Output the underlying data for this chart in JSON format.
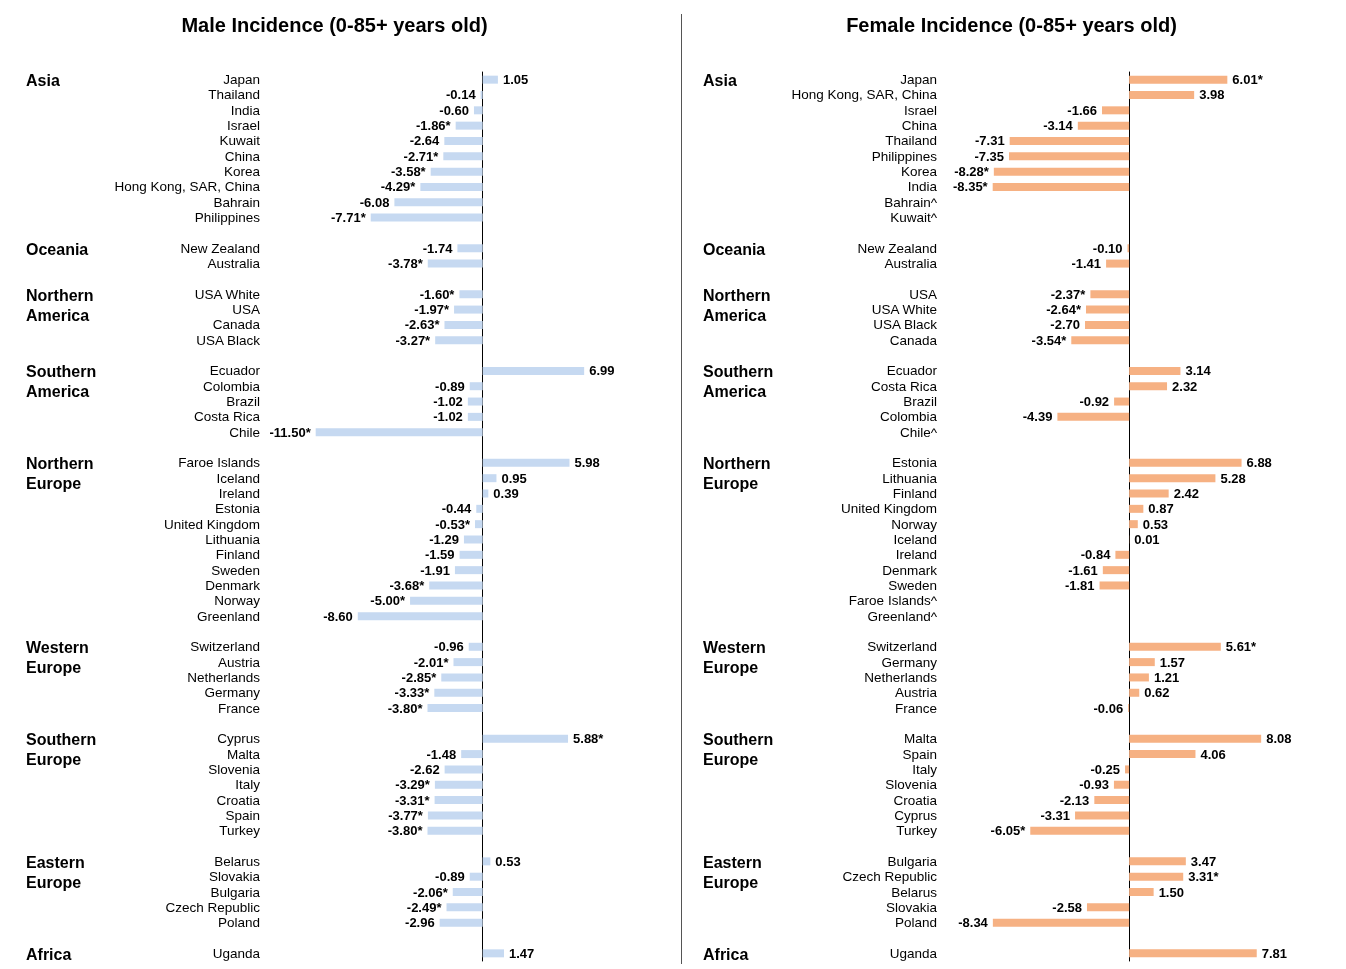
{
  "chart_data": [
    {
      "type": "bar",
      "orientation": "horizontal",
      "title": "Male Incidence (0-85+ years old)",
      "color": "#c6d9f1",
      "grid": false,
      "categories": [
        "Japan",
        "Thailand",
        "India",
        "Israel",
        "Kuwait",
        "China",
        "Korea",
        "Hong Kong, SAR, China",
        "Bahrain",
        "Philippines",
        null,
        "New Zealand",
        "Australia",
        null,
        "USA White",
        "USA",
        "Canada",
        "USA Black",
        null,
        "Ecuador",
        "Colombia",
        "Brazil",
        "Costa Rica",
        "Chile",
        null,
        "Faroe Islands",
        "Iceland",
        "Ireland",
        "Estonia",
        "United Kingdom",
        "Lithuania",
        "Finland",
        "Sweden",
        "Denmark",
        "Norway",
        "Greenland",
        null,
        "Switzerland",
        "Austria",
        "Netherlands",
        "Germany",
        "France",
        null,
        "Cyprus",
        "Malta",
        "Slovenia",
        "Italy",
        "Croatia",
        "Spain",
        "Turkey",
        null,
        "Belarus",
        "Slovakia",
        "Bulgaria",
        "Czech Republic",
        "Poland",
        null,
        "Uganda"
      ],
      "values": [
        1.05,
        -0.14,
        -0.6,
        -1.86,
        -2.64,
        -2.71,
        -3.58,
        -4.29,
        -6.08,
        -7.71,
        null,
        -1.74,
        -3.78,
        null,
        -1.6,
        -1.97,
        -2.63,
        -3.27,
        null,
        6.99,
        -0.89,
        -1.02,
        -1.02,
        -11.5,
        null,
        5.98,
        0.95,
        0.39,
        -0.44,
        -0.53,
        -1.29,
        -1.59,
        -1.91,
        -3.68,
        -5.0,
        -8.6,
        null,
        -0.96,
        -2.01,
        -2.85,
        -3.33,
        -3.8,
        null,
        5.88,
        -1.48,
        -2.62,
        -3.29,
        -3.31,
        -3.77,
        -3.8,
        null,
        0.53,
        -0.89,
        -2.06,
        -2.49,
        -2.96,
        null,
        1.47
      ],
      "value_labels": [
        "1.05",
        "-0.14",
        "-0.60",
        "-1.86*",
        "-2.64",
        "-2.71*",
        "-3.58*",
        "-4.29*",
        "-6.08",
        "-7.71*",
        null,
        "-1.74",
        "-3.78*",
        null,
        "-1.60*",
        "-1.97*",
        "-2.63*",
        "-3.27*",
        null,
        "6.99",
        "-0.89",
        "-1.02",
        "-1.02",
        "-11.50*",
        null,
        "5.98",
        "0.95",
        "0.39",
        "-0.44",
        "-0.53*",
        "-1.29",
        "-1.59",
        "-1.91",
        "-3.68*",
        "-5.00*",
        "-8.60",
        null,
        "-0.96",
        "-2.01*",
        "-2.85*",
        "-3.33*",
        "-3.80*",
        null,
        "5.88*",
        "-1.48",
        "-2.62",
        "-3.29*",
        "-3.31*",
        "-3.77*",
        "-3.80*",
        null,
        "0.53",
        "-0.89",
        "-2.06*",
        "-2.49*",
        "-2.96",
        null,
        "1.47"
      ],
      "annotations": [
        "Asia",
        "Oceania",
        "Northern America",
        "Southern America",
        "Northern Europe",
        "Western Europe",
        "Southern Europe",
        "Eastern Europe",
        "Africa"
      ]
    },
    {
      "type": "bar",
      "orientation": "horizontal",
      "title": "Female Incidence (0-85+ years old)",
      "color": "#f6b183",
      "grid": false,
      "categories": [
        "Japan",
        "Hong Kong, SAR, China",
        "Israel",
        "China",
        "Thailand",
        "Philippines",
        "Korea",
        "India",
        "Bahrain^",
        "Kuwait^",
        null,
        "New Zealand",
        "Australia",
        null,
        "USA",
        "USA White",
        "USA Black",
        "Canada",
        null,
        "Ecuador",
        "Costa Rica",
        "Brazil",
        "Colombia",
        "Chile^",
        null,
        "Estonia",
        "Lithuania",
        "Finland",
        "United Kingdom",
        "Norway",
        "Iceland",
        "Ireland",
        "Denmark",
        "Sweden",
        "Faroe Islands^",
        "Greenland^",
        null,
        "Switzerland",
        "Germany",
        "Netherlands",
        "Austria",
        "France",
        null,
        "Malta",
        "Spain",
        "Italy",
        "Slovenia",
        "Croatia",
        "Cyprus",
        "Turkey",
        null,
        "Bulgaria",
        "Czech Republic",
        "Belarus",
        "Slovakia",
        "Poland",
        null,
        "Uganda"
      ],
      "values": [
        6.01,
        3.98,
        -1.66,
        -3.14,
        -7.31,
        -7.35,
        -8.28,
        -8.35,
        null,
        null,
        null,
        -0.1,
        -1.41,
        null,
        -2.37,
        -2.64,
        -2.7,
        -3.54,
        null,
        3.14,
        2.32,
        -0.92,
        -4.39,
        null,
        null,
        6.88,
        5.28,
        2.42,
        0.87,
        0.53,
        0.01,
        -0.84,
        -1.61,
        -1.81,
        null,
        null,
        null,
        5.61,
        1.57,
        1.21,
        0.62,
        -0.06,
        null,
        8.08,
        4.06,
        -0.25,
        -0.93,
        -2.13,
        -3.31,
        -6.05,
        null,
        3.47,
        3.31,
        1.5,
        -2.58,
        -8.34,
        null,
        7.81
      ],
      "value_labels": [
        "6.01*",
        "3.98",
        "-1.66",
        "-3.14",
        "-7.31",
        "-7.35",
        "-8.28*",
        "-8.35*",
        null,
        null,
        null,
        "-0.10",
        "-1.41",
        null,
        "-2.37*",
        "-2.64*",
        "-2.70",
        "-3.54*",
        null,
        "3.14",
        "2.32",
        "-0.92",
        "-4.39",
        null,
        null,
        "6.88",
        "5.28",
        "2.42",
        "0.87",
        "0.53",
        "0.01",
        "-0.84",
        "-1.61",
        "-1.81",
        null,
        null,
        null,
        "5.61*",
        "1.57",
        "1.21",
        "0.62",
        "-0.06",
        null,
        "8.08",
        "4.06",
        "-0.25",
        "-0.93",
        "-2.13",
        "-3.31",
        "-6.05*",
        null,
        "3.47",
        "3.31*",
        "1.50",
        "-2.58",
        "-8.34",
        null,
        "7.81"
      ],
      "annotations": [
        "Asia",
        "Oceania",
        "Northern America",
        "Southern America",
        "Northern Europe",
        "Western Europe",
        "Southern Europe",
        "Eastern Europe",
        "Africa"
      ]
    }
  ]
}
